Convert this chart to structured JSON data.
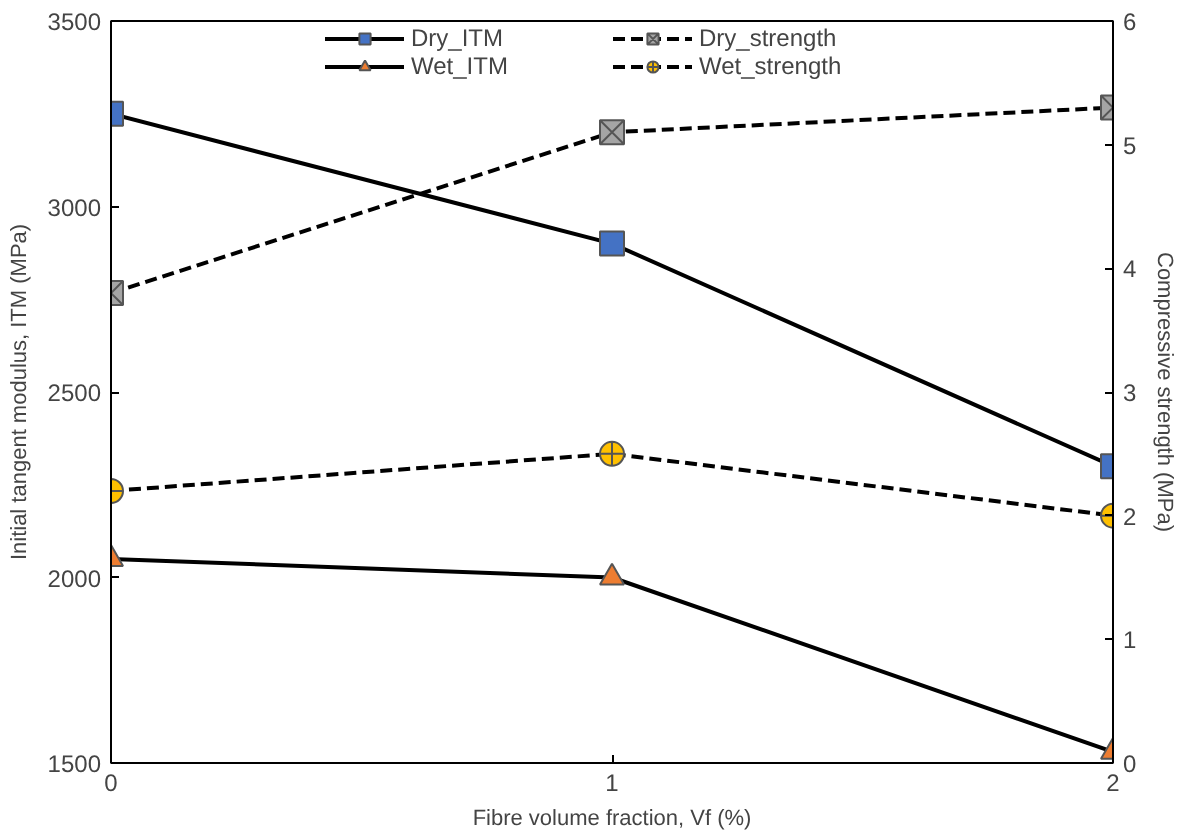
{
  "chart_data": {
    "type": "line",
    "xlabel": "Fibre volume fraction, Vf (%)",
    "ylabel": "Initial tangent modulus, ITM (MPa)",
    "y2label": "Compressive strength (MPa)",
    "x": [
      0,
      1,
      2
    ],
    "xlim": [
      0,
      2
    ],
    "xticks": [
      0,
      1,
      2
    ],
    "ylim": [
      1500,
      3500
    ],
    "yticks": [
      1500,
      2000,
      2500,
      3000,
      3500
    ],
    "y2lim": [
      0,
      6
    ],
    "y2ticks": [
      0,
      1,
      2,
      3,
      4,
      5,
      6
    ],
    "grid": false,
    "legend": "top",
    "series": [
      {
        "name": "Dry_ITM",
        "color": "#4472c4",
        "values": [
          3250,
          2900,
          2300
        ],
        "marker": "square",
        "line_style": "solid"
      },
      {
        "name": "Wet_ITM",
        "color": "#ed7d31",
        "values": [
          2050,
          2000,
          1530
        ],
        "marker": "triangle",
        "line_style": "solid"
      },
      {
        "name": "Dry_strength",
        "color": "#a5a5a5",
        "values": [
          3.8,
          5.1,
          5.3
        ],
        "axis": "y2",
        "marker": "cross",
        "line_style": "dashed"
      },
      {
        "name": "Wet_strength",
        "color": "#ffc000",
        "values": [
          2.2,
          2.5,
          2.0
        ],
        "axis": "y2",
        "marker": "circle",
        "line_style": "dashed"
      }
    ]
  }
}
